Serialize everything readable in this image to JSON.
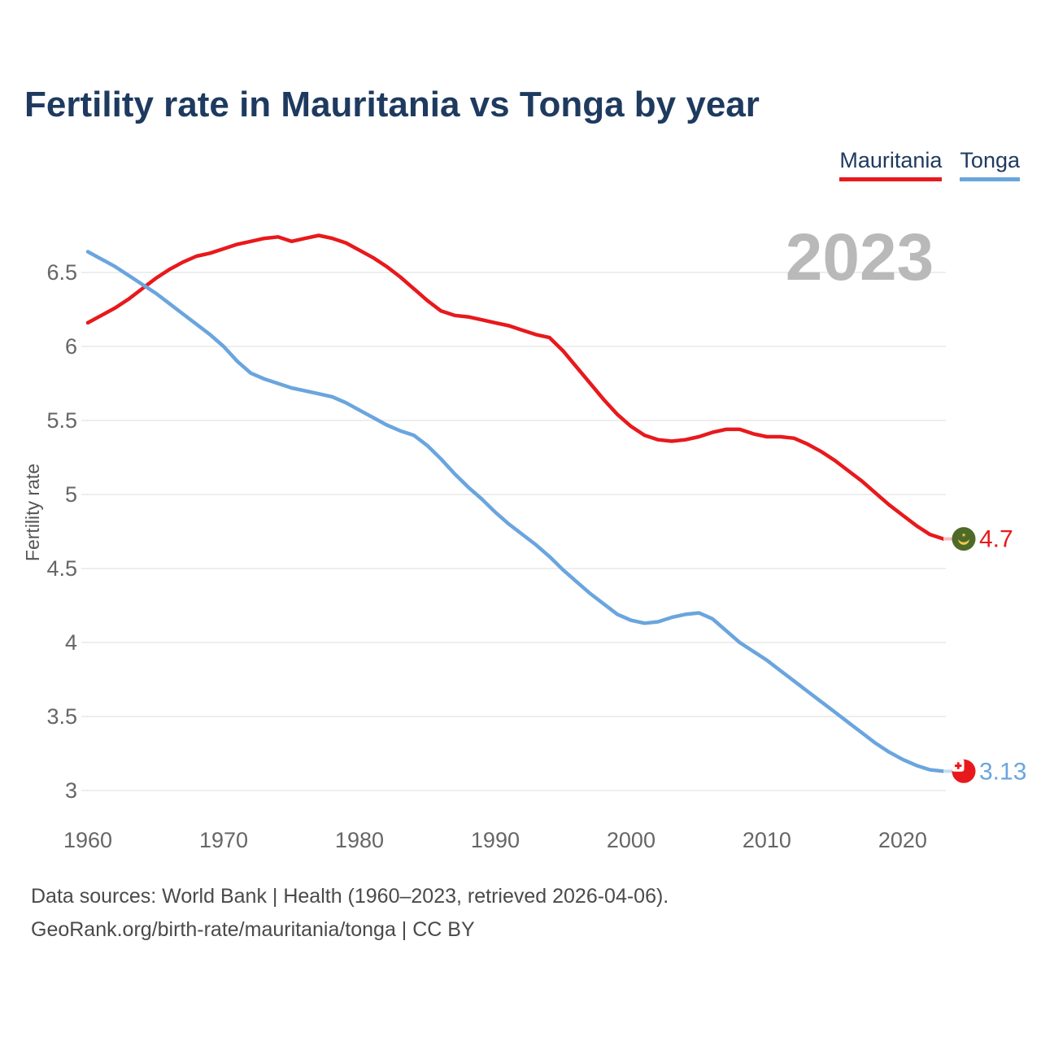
{
  "header": {
    "title": "Fertility rate in Mauritania vs Tonga by year"
  },
  "legend": [
    {
      "label": "Mauritania",
      "color": "#e8191c"
    },
    {
      "label": "Tonga",
      "color": "#6aa5de"
    }
  ],
  "watermark": "2023",
  "footer": {
    "line1": "Data sources: World Bank | Health (1960–2023, retrieved 2026-04-06).",
    "line2": "GeoRank.org/birth-rate/mauritania/tonga | CC BY"
  },
  "chart_data": {
    "type": "line",
    "title": "Fertility rate in Mauritania vs Tonga by year",
    "xlabel": "",
    "ylabel": "Fertility rate",
    "ylim": [
      3,
      6.5
    ],
    "xlim": [
      1960,
      2023
    ],
    "grid": "horizontal",
    "legend_position": "top-right",
    "yticks": [
      "6.5",
      "6",
      "5.5",
      "5",
      "4.5",
      "4",
      "3.5",
      "3"
    ],
    "ytick_values": [
      6.5,
      6,
      5.5,
      5,
      4.5,
      4,
      3.5,
      3
    ],
    "xticks": [
      1960,
      1970,
      1980,
      1990,
      2000,
      2010,
      2020
    ],
    "x": [
      1960,
      1961,
      1962,
      1963,
      1964,
      1965,
      1966,
      1967,
      1968,
      1969,
      1970,
      1971,
      1972,
      1973,
      1974,
      1975,
      1976,
      1977,
      1978,
      1979,
      1980,
      1981,
      1982,
      1983,
      1984,
      1985,
      1986,
      1987,
      1988,
      1989,
      1990,
      1991,
      1992,
      1993,
      1994,
      1995,
      1996,
      1997,
      1998,
      1999,
      2000,
      2001,
      2002,
      2003,
      2004,
      2005,
      2006,
      2007,
      2008,
      2009,
      2010,
      2011,
      2012,
      2013,
      2014,
      2015,
      2016,
      2017,
      2018,
      2019,
      2020,
      2021,
      2022,
      2023
    ],
    "series": [
      {
        "name": "Mauritania",
        "color": "#e8191c",
        "light_color": "#f6bdbd",
        "flag": "mauritania",
        "end_label": "4.7",
        "end_value": 4.7,
        "values": [
          6.16,
          6.21,
          6.26,
          6.32,
          6.39,
          6.46,
          6.52,
          6.57,
          6.61,
          6.63,
          6.66,
          6.69,
          6.71,
          6.73,
          6.74,
          6.71,
          6.73,
          6.75,
          6.73,
          6.7,
          6.65,
          6.6,
          6.54,
          6.47,
          6.39,
          6.31,
          6.24,
          6.21,
          6.2,
          6.18,
          6.16,
          6.14,
          6.11,
          6.08,
          6.06,
          5.97,
          5.86,
          5.75,
          5.64,
          5.54,
          5.46,
          5.4,
          5.37,
          5.36,
          5.37,
          5.39,
          5.42,
          5.44,
          5.44,
          5.41,
          5.39,
          5.39,
          5.38,
          5.34,
          5.29,
          5.23,
          5.16,
          5.09,
          5.01,
          4.93,
          4.86,
          4.79,
          4.73,
          4.7
        ]
      },
      {
        "name": "Tonga",
        "color": "#6aa5de",
        "light_color": "#c3dcf4",
        "flag": "tonga",
        "end_label": "3.13",
        "end_value": 3.13,
        "values": [
          6.64,
          6.59,
          6.54,
          6.48,
          6.42,
          6.36,
          6.29,
          6.22,
          6.15,
          6.08,
          6.0,
          5.9,
          5.82,
          5.78,
          5.75,
          5.72,
          5.7,
          5.68,
          5.66,
          5.62,
          5.57,
          5.52,
          5.47,
          5.43,
          5.4,
          5.33,
          5.24,
          5.14,
          5.05,
          4.97,
          4.88,
          4.8,
          4.73,
          4.66,
          4.58,
          4.49,
          4.41,
          4.33,
          4.26,
          4.19,
          4.15,
          4.13,
          4.14,
          4.17,
          4.19,
          4.2,
          4.16,
          4.08,
          4.0,
          3.94,
          3.88,
          3.81,
          3.74,
          3.67,
          3.6,
          3.53,
          3.46,
          3.39,
          3.32,
          3.26,
          3.21,
          3.17,
          3.14,
          3.13
        ]
      }
    ]
  },
  "colors": {
    "title": "#1e3a5f",
    "tick": "#666666",
    "axis_label": "#555555",
    "gridline": "#e8e8e8",
    "watermark": "#b9b9b9",
    "footer": "#4a4a4a",
    "flag_green": "#4d6a28",
    "flag_gold": "#f2c94c",
    "flag_red": "#e8191c"
  }
}
